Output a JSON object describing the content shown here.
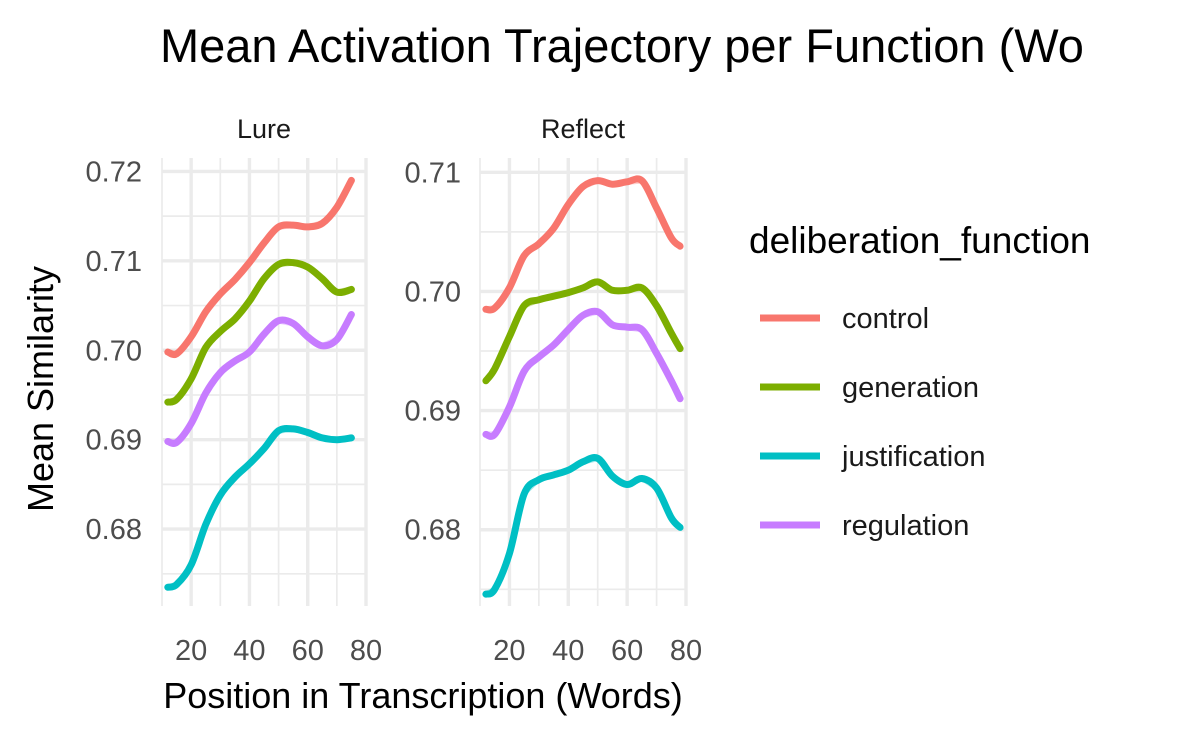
{
  "chart_data": {
    "type": "line",
    "title": "Mean Activation Trajectory per Function (Wo",
    "xlabel": "Position in Transcription (Words)",
    "ylabel": "Mean Similarity",
    "legend": {
      "title": "deliberation_function",
      "placement": "right",
      "items": [
        {
          "key": "control",
          "label": "control",
          "color": "#F8766D"
        },
        {
          "key": "generation",
          "label": "generation",
          "color": "#7CAE00"
        },
        {
          "key": "justification",
          "label": "justification",
          "color": "#00BFC4"
        },
        {
          "key": "regulation",
          "label": "regulation",
          "color": "#C77CFF"
        }
      ]
    },
    "panels": [
      {
        "name": "Lure",
        "xlim": [
          10,
          80
        ],
        "ylim": [
          0.6714,
          0.7215
        ],
        "x_ticks": [
          20,
          40,
          60,
          80
        ],
        "x_tick_labels": [
          "20",
          "40",
          "60",
          "80"
        ],
        "y_ticks": [
          0.68,
          0.69,
          0.7,
          0.71,
          0.72
        ],
        "y_tick_labels": [
          "0.68",
          "0.69",
          "0.70",
          "0.71",
          "0.72"
        ],
        "series": [
          {
            "name": "control",
            "x": [
              12,
              15,
              20,
              25,
              30,
              35,
              40,
              45,
              50,
              55,
              60,
              65,
              70,
              75
            ],
            "y": [
              0.6998,
              0.6996,
              0.7015,
              0.7043,
              0.7063,
              0.7079,
              0.7098,
              0.712,
              0.7138,
              0.714,
              0.7138,
              0.7142,
              0.716,
              0.719
            ]
          },
          {
            "name": "generation",
            "x": [
              12,
              15,
              20,
              25,
              30,
              35,
              40,
              45,
              50,
              55,
              60,
              65,
              70,
              75
            ],
            "y": [
              0.6942,
              0.6945,
              0.6968,
              0.7003,
              0.7021,
              0.7035,
              0.7055,
              0.708,
              0.7096,
              0.7098,
              0.7093,
              0.708,
              0.7065,
              0.7068
            ]
          },
          {
            "name": "justification",
            "x": [
              12,
              15,
              20,
              25,
              30,
              35,
              40,
              45,
              50,
              55,
              60,
              65,
              70,
              75
            ],
            "y": [
              0.6735,
              0.6738,
              0.676,
              0.6805,
              0.6838,
              0.6858,
              0.6873,
              0.689,
              0.691,
              0.6912,
              0.6908,
              0.6902,
              0.69,
              0.6902
            ]
          },
          {
            "name": "regulation",
            "x": [
              12,
              15,
              20,
              25,
              30,
              35,
              40,
              45,
              50,
              55,
              60,
              65,
              70,
              75
            ],
            "y": [
              0.6898,
              0.6897,
              0.6918,
              0.6952,
              0.6975,
              0.6988,
              0.6998,
              0.7018,
              0.7033,
              0.703,
              0.7015,
              0.7005,
              0.7012,
              0.704
            ]
          }
        ]
      },
      {
        "name": "Reflect",
        "xlim": [
          10,
          80
        ],
        "ylim": [
          0.6736,
          0.7112
        ],
        "x_ticks": [
          20,
          40,
          60,
          80
        ],
        "x_tick_labels": [
          "20",
          "40",
          "60",
          "80"
        ],
        "y_ticks": [
          0.68,
          0.69,
          0.7,
          0.71
        ],
        "y_tick_labels": [
          "0.68",
          "0.69",
          "0.70",
          "0.71"
        ],
        "series": [
          {
            "name": "control",
            "x": [
              12,
              15,
              20,
              25,
              30,
              35,
              40,
              45,
              50,
              55,
              60,
              65,
              70,
              75,
              78
            ],
            "y": [
              0.6985,
              0.6986,
              0.7003,
              0.703,
              0.704,
              0.7053,
              0.7073,
              0.7088,
              0.7093,
              0.709,
              0.7092,
              0.7093,
              0.707,
              0.7045,
              0.7038
            ]
          },
          {
            "name": "generation",
            "x": [
              12,
              15,
              20,
              25,
              30,
              35,
              40,
              45,
              50,
              55,
              60,
              65,
              70,
              75,
              78
            ],
            "y": [
              0.6925,
              0.6935,
              0.6962,
              0.6988,
              0.6993,
              0.6996,
              0.6999,
              0.7003,
              0.7008,
              0.7001,
              0.7001,
              0.7003,
              0.6988,
              0.6965,
              0.6952
            ]
          },
          {
            "name": "justification",
            "x": [
              12,
              15,
              20,
              25,
              30,
              35,
              40,
              45,
              50,
              55,
              60,
              65,
              70,
              75,
              78
            ],
            "y": [
              0.6746,
              0.675,
              0.678,
              0.683,
              0.6842,
              0.6846,
              0.685,
              0.6857,
              0.686,
              0.6845,
              0.6838,
              0.6843,
              0.6835,
              0.681,
              0.6802
            ]
          },
          {
            "name": "regulation",
            "x": [
              12,
              15,
              20,
              25,
              30,
              35,
              40,
              45,
              50,
              55,
              60,
              65,
              70,
              75,
              78
            ],
            "y": [
              0.688,
              0.688,
              0.6903,
              0.6933,
              0.6945,
              0.6955,
              0.6968,
              0.698,
              0.6983,
              0.6972,
              0.697,
              0.6968,
              0.6948,
              0.6925,
              0.691
            ]
          }
        ]
      }
    ]
  }
}
